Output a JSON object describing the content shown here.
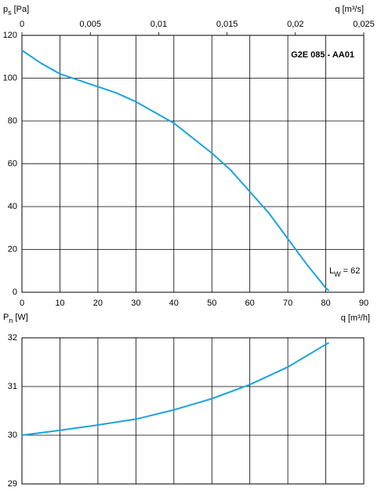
{
  "chart_data": [
    {
      "type": "line",
      "title": "G2E 085 - AA01",
      "xlabel": "q [m³/h]",
      "x2label": "q [m³/s]",
      "ylabel": {
        "symbol": "p",
        "subscript": "s",
        "unit": "[Pa]"
      },
      "annotation": {
        "symbol": "L",
        "subscript": "W",
        "text": "= 62"
      },
      "x": [
        0,
        5,
        10,
        15,
        20,
        25,
        30,
        35,
        40,
        45,
        50,
        55,
        60,
        65,
        70,
        75,
        80,
        80.8
      ],
      "series": [
        {
          "color": "#1ba3dd",
          "values": [
            113,
            107,
            102,
            99,
            96,
            93,
            89,
            84,
            79,
            72,
            65,
            57,
            47,
            37,
            25,
            13,
            2,
            0.7
          ]
        }
      ],
      "xlim": [
        0,
        90
      ],
      "xticks": [
        0,
        10,
        20,
        30,
        40,
        50,
        60,
        70,
        80,
        90
      ],
      "x2lim": [
        0,
        0.025
      ],
      "x2ticks": [
        0,
        {
          "value": 0.005,
          "label": "0,005"
        },
        {
          "value": 0.01,
          "label": "0,01"
        },
        {
          "value": 0.015,
          "label": "0,015"
        },
        {
          "value": 0.02,
          "label": "0,02"
        },
        {
          "value": 0.025,
          "label": "0,025"
        }
      ],
      "ylim": [
        0,
        120
      ],
      "yticks": [
        0,
        20,
        40,
        60,
        80,
        100,
        120
      ],
      "grid": true
    },
    {
      "type": "line",
      "ylabel": {
        "symbol": "P",
        "subscript": "n",
        "unit": "[W]"
      },
      "x": [
        0,
        10,
        20,
        30,
        40,
        50,
        60,
        70,
        80.8
      ],
      "series": [
        {
          "color": "#1ba3dd",
          "values": [
            30.0,
            30.1,
            30.21,
            30.33,
            30.52,
            30.75,
            31.04,
            31.4,
            31.9
          ]
        }
      ],
      "xlim": [
        0,
        90
      ],
      "xticks": [
        0,
        10,
        20,
        30,
        40,
        50,
        60,
        70,
        80,
        90
      ],
      "ylim": [
        29,
        32
      ],
      "yticks": [
        29,
        30,
        31,
        32
      ],
      "grid": true
    }
  ]
}
